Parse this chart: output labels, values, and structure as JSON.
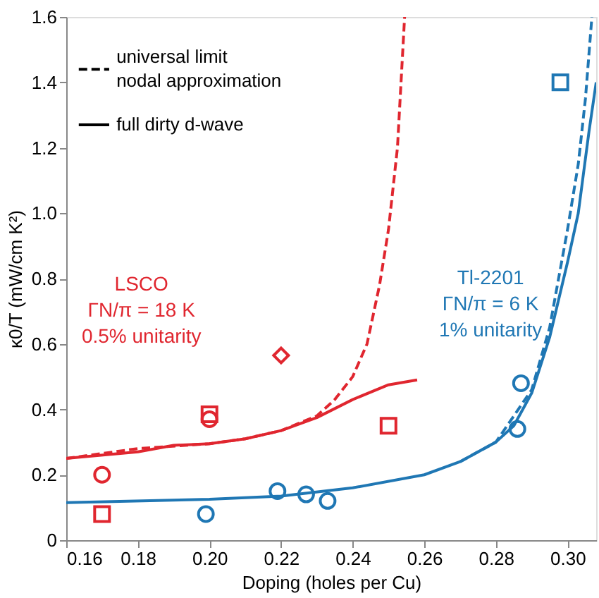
{
  "chart_data": {
    "type": "line",
    "xlabel": "Doping (holes per Cu)",
    "ylabel": "κ0/T (mW/cm K²)",
    "xlim": [
      0.16,
      0.308
    ],
    "xticks": [
      0.16,
      0.18,
      {
        "value": 0.2,
        "label": "0.20"
      },
      0.22,
      0.24,
      0.26,
      0.28,
      {
        "value": 0.3,
        "label": "0.30"
      }
    ],
    "ylim": [
      0,
      1.6
    ],
    "yticks": [
      0,
      0.2,
      0.4,
      0.6,
      0.8,
      {
        "value": 1,
        "label": "1.0"
      },
      1.2,
      1.4,
      1.6
    ],
    "grid": false,
    "series": [
      {
        "color": "#e0262f",
        "line_style": "dashed",
        "x": [
          0.16,
          0.18,
          0.2,
          0.21,
          0.22,
          0.23,
          0.235,
          0.24,
          0.244,
          0.2475,
          0.25,
          0.2525,
          0.2545
        ],
        "values": [
          0.25,
          0.28,
          0.295,
          0.31,
          0.335,
          0.38,
          0.43,
          0.5,
          0.6,
          0.78,
          0.95,
          1.2,
          1.6
        ]
      },
      {
        "color": "#e0262f",
        "line_style": "solid",
        "x": [
          0.16,
          0.18,
          0.19,
          0.2,
          0.21,
          0.22,
          0.23,
          0.24,
          0.25,
          0.258
        ],
        "values": [
          0.25,
          0.27,
          0.29,
          0.295,
          0.31,
          0.335,
          0.375,
          0.43,
          0.475,
          0.49
        ]
      },
      {
        "color": "#1f77b4",
        "line_style": "dashed",
        "x": [
          0.27,
          0.28,
          0.29,
          0.295,
          0.3,
          0.303,
          0.305,
          0.3068
        ],
        "values": [
          0.24,
          0.3,
          0.46,
          0.65,
          0.95,
          1.15,
          1.35,
          1.6
        ]
      },
      {
        "color": "#1f77b4",
        "line_style": "solid",
        "x": [
          0.16,
          0.2,
          0.22,
          0.24,
          0.26,
          0.27,
          0.28,
          0.285,
          0.29,
          0.295,
          0.3,
          0.303,
          0.306,
          0.308
        ],
        "values": [
          0.115,
          0.125,
          0.135,
          0.16,
          0.2,
          0.24,
          0.3,
          0.35,
          0.45,
          0.62,
          0.85,
          1.0,
          1.25,
          1.4
        ]
      },
      {
        "type": "scatter",
        "marker": "circle",
        "color": "#e0262f",
        "x": [
          0.17,
          0.2
        ],
        "values": [
          0.2,
          0.37
        ]
      },
      {
        "type": "scatter",
        "marker": "square",
        "color": "#e0262f",
        "x": [
          0.17,
          0.2,
          0.25
        ],
        "values": [
          0.08,
          0.385,
          0.35
        ]
      },
      {
        "type": "scatter",
        "marker": "diamond",
        "color": "#e0262f",
        "x": [
          0.22
        ],
        "values": [
          0.565
        ]
      },
      {
        "type": "scatter",
        "marker": "circle",
        "color": "#1f77b4",
        "x": [
          0.199,
          0.219,
          0.227,
          0.233,
          0.286,
          0.287
        ],
        "values": [
          0.08,
          0.15,
          0.14,
          0.12,
          0.34,
          0.48
        ]
      },
      {
        "type": "scatter",
        "marker": "square",
        "color": "#1f77b4",
        "x": [
          0.298
        ],
        "values": [
          1.4
        ]
      }
    ],
    "annotations": [
      "universal limit\nnodal approximation",
      "full dirty d-wave",
      "LSCO",
      "ΓN/π = 18 K",
      "0.5% unitarity",
      "Tl-2201",
      "ΓN/π = 6 K",
      "1% unitarity"
    ]
  }
}
